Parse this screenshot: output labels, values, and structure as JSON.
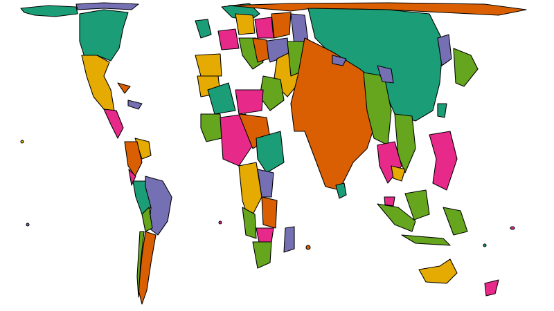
{
  "map": {
    "type": "cartogram world map",
    "palette": {
      "teal": "#1b9e77",
      "orange": "#d95f02",
      "purple": "#7570b3",
      "pink": "#e7298a",
      "green": "#66a61e",
      "yellow": "#e6ab02"
    },
    "background": "#ffffff",
    "border_color": "#000000"
  }
}
